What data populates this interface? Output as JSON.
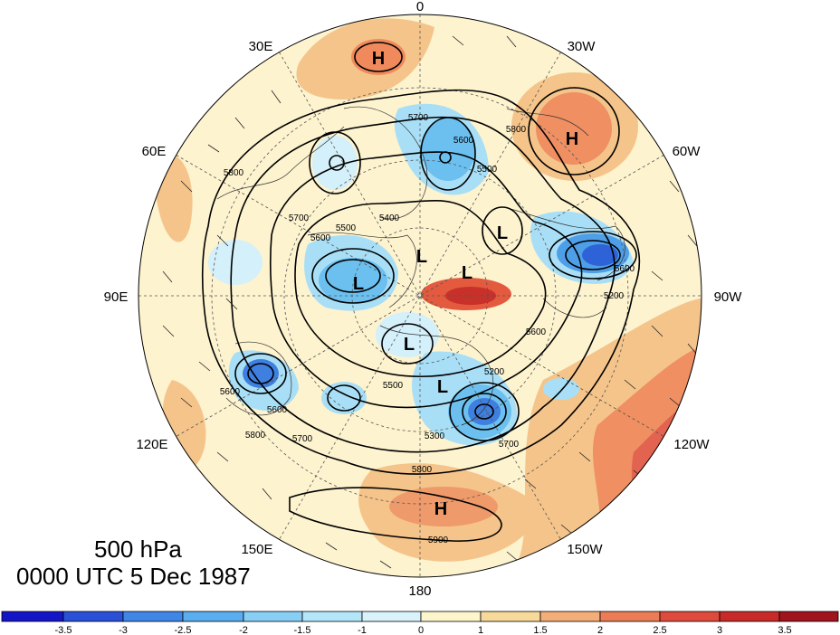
{
  "title": {
    "level": "500 hPa",
    "datetime": "0000 UTC 5 Dec 1987"
  },
  "map": {
    "projection": "north-polar-stereographic",
    "longitude_labels": [
      "0",
      "30W",
      "60W",
      "90W",
      "120W",
      "150W",
      "180",
      "150E",
      "120E",
      "90E",
      "60E",
      "30E"
    ],
    "contour_labels": [
      "5700",
      "5600",
      "5500",
      "5400",
      "5800",
      "5800",
      "5700",
      "5600",
      "5500",
      "5600",
      "5600",
      "5500",
      "5300",
      "5800",
      "5200",
      "5700",
      "5800",
      "5900",
      "5600",
      "5700",
      "5600",
      "5200"
    ],
    "highs": [
      "H",
      "H",
      "H"
    ],
    "lows": [
      "L",
      "L",
      "L",
      "L",
      "L",
      "L"
    ]
  },
  "colorbar": {
    "tick_labels": [
      "-3.5",
      "-3",
      "-2.5",
      "-2",
      "-1.5",
      "-1",
      "0",
      "1",
      "1.5",
      "2",
      "2.5",
      "3",
      "3.5"
    ],
    "colors": [
      "#1515c8",
      "#2a50d8",
      "#3f86e6",
      "#5aaef0",
      "#88cff6",
      "#b4e6fa",
      "#daf3fb",
      "#fdf5cc",
      "#f7d99a",
      "#f3ae78",
      "#ea7d56",
      "#de4a3c",
      "#c82a2a",
      "#a0141e"
    ]
  }
}
